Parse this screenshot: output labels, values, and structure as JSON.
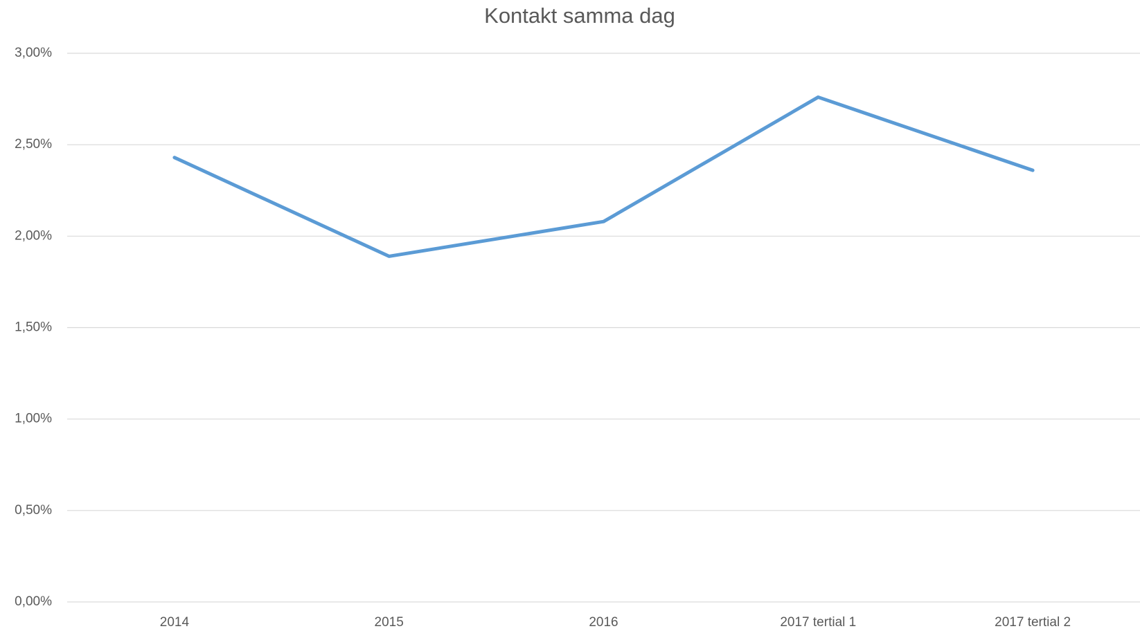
{
  "chart_data": {
    "type": "line",
    "title": "Kontakt samma dag",
    "categories": [
      "2014",
      "2015",
      "2016",
      "2017 tertial 1",
      "2017 tertial 2"
    ],
    "series": [
      {
        "name": "Kontakt samma dag",
        "color": "#5b9bd5",
        "values": [
          2.43,
          1.89,
          2.08,
          2.76,
          2.36
        ]
      }
    ],
    "ylim": [
      0,
      3
    ],
    "yticks": [
      {
        "value": 0,
        "label": "0,00%"
      },
      {
        "value": 0.5,
        "label": "0,50%"
      },
      {
        "value": 1,
        "label": "1,00%"
      },
      {
        "value": 1.5,
        "label": "1,50%"
      },
      {
        "value": 2,
        "label": "2,00%"
      },
      {
        "value": 2.5,
        "label": "2,50%"
      },
      {
        "value": 3,
        "label": "3,00%"
      }
    ],
    "grid": true
  }
}
